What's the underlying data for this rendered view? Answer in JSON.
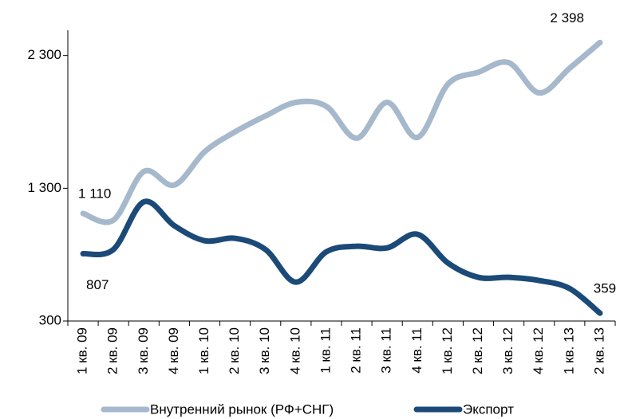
{
  "chart_data": {
    "type": "line",
    "categories": [
      "1 кв. 09",
      "2 кв. 09",
      "3 кв. 09",
      "4 кв. 09",
      "1 кв. 10",
      "2 кв. 10",
      "3 кв. 10",
      "4 кв. 10",
      "1 кв. 11",
      "2 кв. 11",
      "3 кв. 11",
      "4 кв. 11",
      "1 кв. 12",
      "2 кв. 12",
      "3 кв. 12",
      "4 кв. 12",
      "1 кв. 13",
      "2 кв. 13"
    ],
    "series": [
      {
        "name": "Внутренний рынок (РФ+СНГ)",
        "color": "#a6b8cc",
        "values": [
          1110,
          1060,
          1426,
          1324,
          1575,
          1725,
          1845,
          1947,
          1917,
          1677,
          1947,
          1683,
          2084,
          2174,
          2246,
          2018,
          2204,
          2398
        ],
        "value_labels": [
          "1 110",
          null,
          null,
          null,
          null,
          null,
          null,
          null,
          null,
          null,
          null,
          null,
          null,
          null,
          null,
          null,
          null,
          "2 398"
        ]
      },
      {
        "name": "Экспорт",
        "color": "#1b4a78",
        "values": [
          807,
          839,
          1198,
          1018,
          905,
          923,
          839,
          593,
          821,
          863,
          851,
          953,
          737,
          629,
          629,
          605,
          545,
          359
        ],
        "value_labels": [
          "807",
          null,
          null,
          null,
          null,
          null,
          null,
          null,
          null,
          null,
          null,
          null,
          null,
          null,
          null,
          null,
          null,
          "359"
        ]
      }
    ],
    "ylim": [
      300,
      2490
    ],
    "yticks": [
      300,
      {
        "value": 1300,
        "label": "1 300"
      },
      {
        "value": 2300,
        "label": "2 300"
      }
    ],
    "legend": "bottom"
  }
}
